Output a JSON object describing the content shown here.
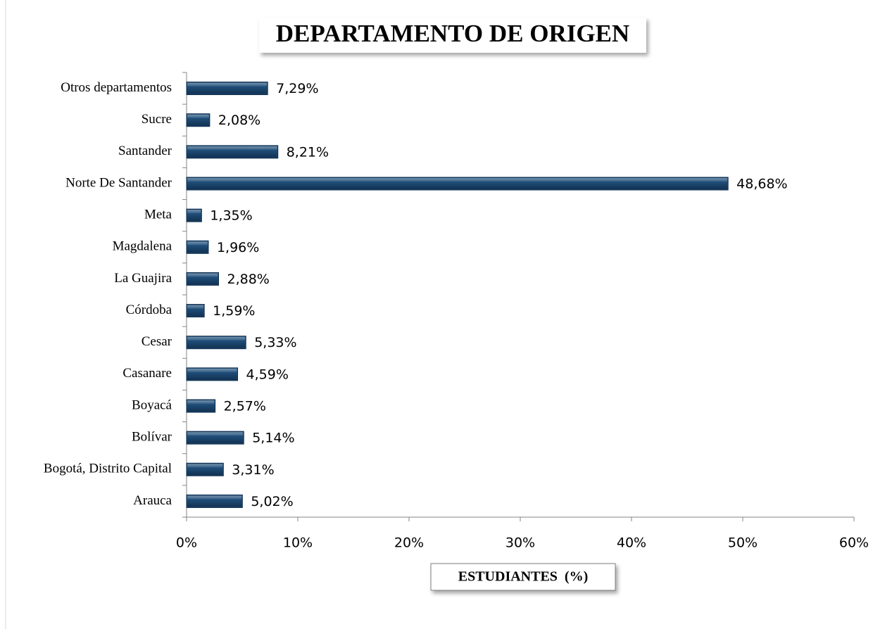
{
  "chart_data": {
    "type": "hbar",
    "title": "DEPARTAMENTO DE ORIGEN",
    "x_label": "ESTUDIANTES  (%)",
    "categories": [
      "Arauca",
      "Bogotá, Distrito Capital",
      "Bolívar",
      "Boyacá",
      "Casanare",
      "Cesar",
      "Córdoba",
      "La Guajira",
      "Magdalena",
      "Meta",
      "Norte De Santander",
      "Santander",
      "Sucre",
      "Otros departamentos"
    ],
    "values": [
      5.02,
      3.31,
      5.14,
      2.57,
      4.59,
      5.33,
      1.59,
      2.88,
      1.96,
      1.35,
      48.68,
      8.21,
      2.08,
      7.29
    ],
    "value_labels": [
      "5,02%",
      "3,31%",
      "5,14%",
      "2,57%",
      "4,59%",
      "5,33%",
      "1,59%",
      "2,88%",
      "1,96%",
      "1,35%",
      "48,68%",
      "8,21%",
      "2,08%",
      "7,29%"
    ],
    "color": "#1f4e79",
    "xlim": [
      0,
      60
    ],
    "xticks": [
      {
        "value": 0,
        "label": "0%"
      },
      {
        "value": 10,
        "label": "10%"
      },
      {
        "value": 20,
        "label": "20%"
      },
      {
        "value": 30,
        "label": "30%"
      },
      {
        "value": 40,
        "label": "40%"
      },
      {
        "value": 50,
        "label": "50%"
      },
      {
        "value": 60,
        "label": "60%"
      }
    ]
  }
}
